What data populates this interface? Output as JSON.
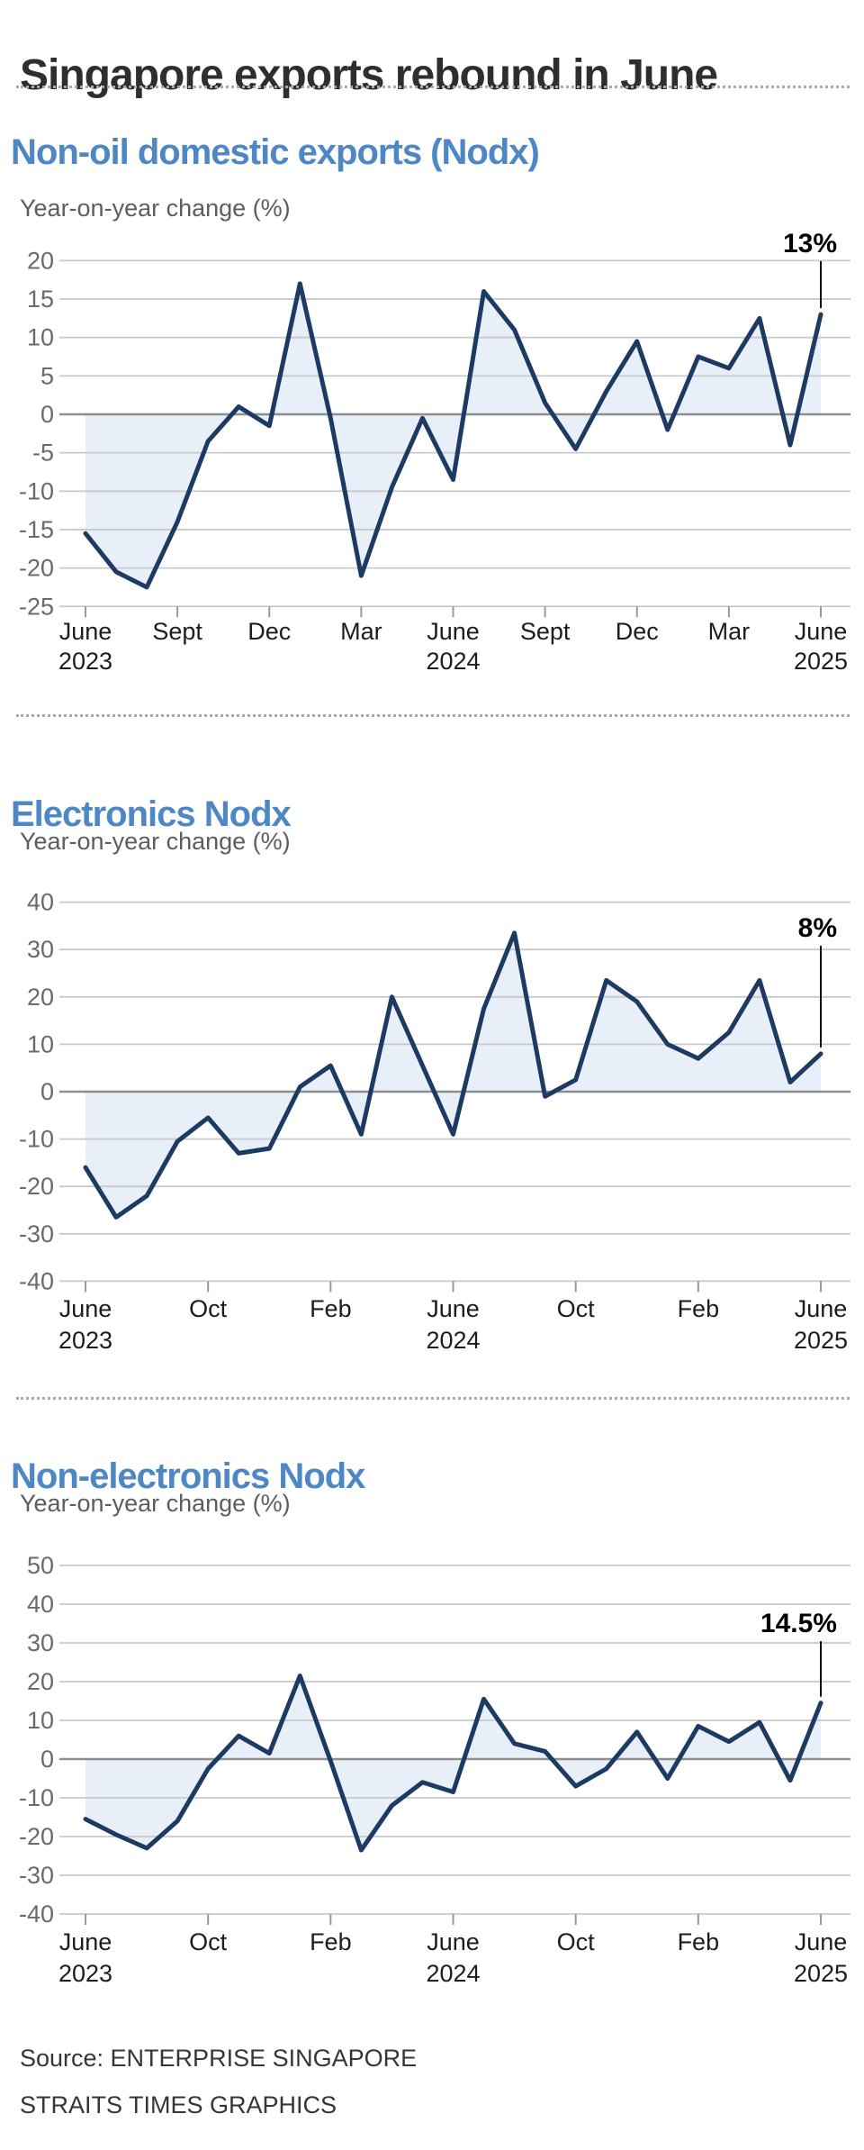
{
  "title": "Singapore exports rebound in June",
  "footer": {
    "source": "Source: ENTERPRISE SINGAPORE",
    "credit": "STRAITS TIMES GRAPHICS"
  },
  "colors": {
    "line": "#1d3a63",
    "area_fill": "#e9eff8",
    "heading_blue": "#4e87c5",
    "grid": "#c9c9c9",
    "zero_line": "#8f8f8f",
    "tick_mark": "#999999",
    "y_label": "#6a6a6a",
    "x_label": "#1d1d1d",
    "axis_title_text": "#5d5d5d",
    "title_text": "#2e2e2e",
    "callout_text": "#000000"
  },
  "chart_data": [
    {
      "type": "line",
      "title": "Non-oil domestic exports (Nodx)",
      "ylabel": "Year-on-year change (%)",
      "ylim": [
        -25,
        20
      ],
      "yticks": [
        20,
        15,
        10,
        5,
        0,
        -5,
        -10,
        -15,
        -20,
        -25
      ],
      "grid": true,
      "area_to_zero": true,
      "categories": [
        "Jun 2023",
        "Jul 2023",
        "Aug 2023",
        "Sep 2023",
        "Oct 2023",
        "Nov 2023",
        "Dec 2023",
        "Jan 2024",
        "Feb 2024",
        "Mar 2024",
        "Apr 2024",
        "May 2024",
        "Jun 2024",
        "Jul 2024",
        "Aug 2024",
        "Sep 2024",
        "Oct 2024",
        "Nov 2024",
        "Dec 2024",
        "Jan 2025",
        "Feb 2025",
        "Mar 2025",
        "Apr 2025",
        "May 2025",
        "Jun 2025"
      ],
      "values": [
        -15.5,
        -20.5,
        -22.5,
        -14,
        -3.5,
        1,
        -1.5,
        17,
        -0.5,
        -21,
        -9.5,
        -0.5,
        -8.5,
        16,
        11,
        1.5,
        -4.5,
        3,
        9.5,
        -2,
        7.5,
        6,
        12.5,
        -4,
        13
      ],
      "xticks": [
        {
          "index": 0,
          "label": "June",
          "year": "2023"
        },
        {
          "index": 3,
          "label": "Sept"
        },
        {
          "index": 6,
          "label": "Dec"
        },
        {
          "index": 9,
          "label": "Mar"
        },
        {
          "index": 12,
          "label": "June",
          "year": "2024"
        },
        {
          "index": 15,
          "label": "Sept"
        },
        {
          "index": 18,
          "label": "Dec"
        },
        {
          "index": 21,
          "label": "Mar"
        },
        {
          "index": 24,
          "label": "June",
          "year": "2025"
        }
      ],
      "last_value_label": "13%"
    },
    {
      "type": "line",
      "title": "Electronics Nodx",
      "ylabel": "Year-on-year change (%)",
      "ylim": [
        -40,
        40
      ],
      "yticks": [
        40,
        30,
        20,
        10,
        0,
        -10,
        -20,
        -30,
        -40
      ],
      "grid": true,
      "area_to_zero": true,
      "categories": [
        "Jun 2023",
        "Jul 2023",
        "Aug 2023",
        "Sep 2023",
        "Oct 2023",
        "Nov 2023",
        "Dec 2023",
        "Jan 2024",
        "Feb 2024",
        "Mar 2024",
        "Apr 2024",
        "May 2024",
        "Jun 2024",
        "Jul 2024",
        "Aug 2024",
        "Sep 2024",
        "Oct 2024",
        "Nov 2024",
        "Dec 2024",
        "Jan 2025",
        "Feb 2025",
        "Mar 2025",
        "Apr 2025",
        "May 2025",
        "Jun 2025"
      ],
      "values": [
        -16,
        -26.5,
        -22,
        -10.5,
        -5.5,
        -13,
        -12,
        1,
        5.5,
        -9,
        20,
        5.5,
        -9,
        17.5,
        33.5,
        -1,
        2.5,
        23.5,
        19,
        10,
        7,
        12.5,
        23.5,
        2,
        8
      ],
      "xticks": [
        {
          "index": 0,
          "label": "June",
          "year": "2023"
        },
        {
          "index": 4,
          "label": "Oct"
        },
        {
          "index": 8,
          "label": "Feb"
        },
        {
          "index": 12,
          "label": "June",
          "year": "2024"
        },
        {
          "index": 16,
          "label": "Oct"
        },
        {
          "index": 20,
          "label": "Feb"
        },
        {
          "index": 24,
          "label": "June",
          "year": "2025"
        }
      ],
      "last_value_label": "8%"
    },
    {
      "type": "line",
      "title": "Non-electronics Nodx",
      "ylabel": "Year-on-year change (%)",
      "ylim": [
        -40,
        50
      ],
      "yticks": [
        50,
        40,
        30,
        20,
        10,
        0,
        -10,
        -20,
        -30,
        -40
      ],
      "grid": true,
      "area_to_zero": true,
      "categories": [
        "Jun 2023",
        "Jul 2023",
        "Aug 2023",
        "Sep 2023",
        "Oct 2023",
        "Nov 2023",
        "Dec 2023",
        "Jan 2024",
        "Feb 2024",
        "Mar 2024",
        "Apr 2024",
        "May 2024",
        "Jun 2024",
        "Jul 2024",
        "Aug 2024",
        "Sep 2024",
        "Oct 2024",
        "Nov 2024",
        "Dec 2024",
        "Jan 2025",
        "Feb 2025",
        "Mar 2025",
        "Apr 2025",
        "May 2025",
        "Jun 2025"
      ],
      "values": [
        -15.5,
        -19.5,
        -23,
        -16,
        -2.5,
        6,
        1.5,
        21.5,
        -0.5,
        -23.5,
        -12,
        -6,
        -8.5,
        15.5,
        4,
        2,
        -7,
        -2.5,
        7,
        -5,
        8.5,
        4.5,
        9.5,
        -5.5,
        14.5
      ],
      "xticks": [
        {
          "index": 0,
          "label": "June",
          "year": "2023"
        },
        {
          "index": 4,
          "label": "Oct"
        },
        {
          "index": 8,
          "label": "Feb"
        },
        {
          "index": 12,
          "label": "June",
          "year": "2024"
        },
        {
          "index": 16,
          "label": "Oct"
        },
        {
          "index": 20,
          "label": "Feb"
        },
        {
          "index": 24,
          "label": "June",
          "year": "2025"
        }
      ],
      "last_value_label": "14.5%"
    }
  ]
}
